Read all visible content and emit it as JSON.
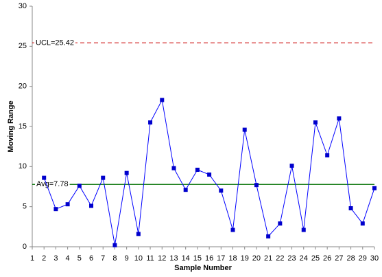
{
  "chart_data": {
    "type": "line",
    "xlabel": "Sample Number",
    "ylabel": "Moving Range",
    "x": [
      1,
      2,
      3,
      4,
      5,
      6,
      7,
      8,
      9,
      10,
      11,
      12,
      13,
      14,
      15,
      16,
      17,
      18,
      19,
      20,
      21,
      22,
      23,
      24,
      25,
      26,
      27,
      28,
      29,
      30
    ],
    "values": [
      null,
      8.6,
      4.7,
      5.3,
      7.6,
      5.1,
      8.6,
      0.2,
      9.2,
      1.6,
      15.5,
      18.3,
      9.8,
      7.1,
      9.6,
      9.0,
      7.0,
      2.1,
      14.6,
      7.7,
      1.3,
      2.9,
      10.1,
      2.1,
      15.5,
      11.4,
      16.0,
      4.8,
      2.9,
      7.3
    ],
    "color": "#0000ff",
    "marker_color": "#0000cc",
    "xlim": [
      1,
      30
    ],
    "xticks": [
      1,
      2,
      3,
      4,
      5,
      6,
      7,
      8,
      9,
      10,
      11,
      12,
      13,
      14,
      15,
      16,
      17,
      18,
      19,
      20,
      21,
      22,
      23,
      24,
      25,
      26,
      27,
      28,
      29,
      30
    ],
    "ylim": [
      0,
      30
    ],
    "yticks": [
      0,
      5,
      10,
      15,
      20,
      25,
      30
    ],
    "grid": false,
    "ucl": {
      "value": 25.42,
      "label": "UCL=25.42",
      "color": "#cc0000"
    },
    "avg": {
      "value": 7.78,
      "label": "Avg=7.78",
      "color": "#007000"
    }
  }
}
